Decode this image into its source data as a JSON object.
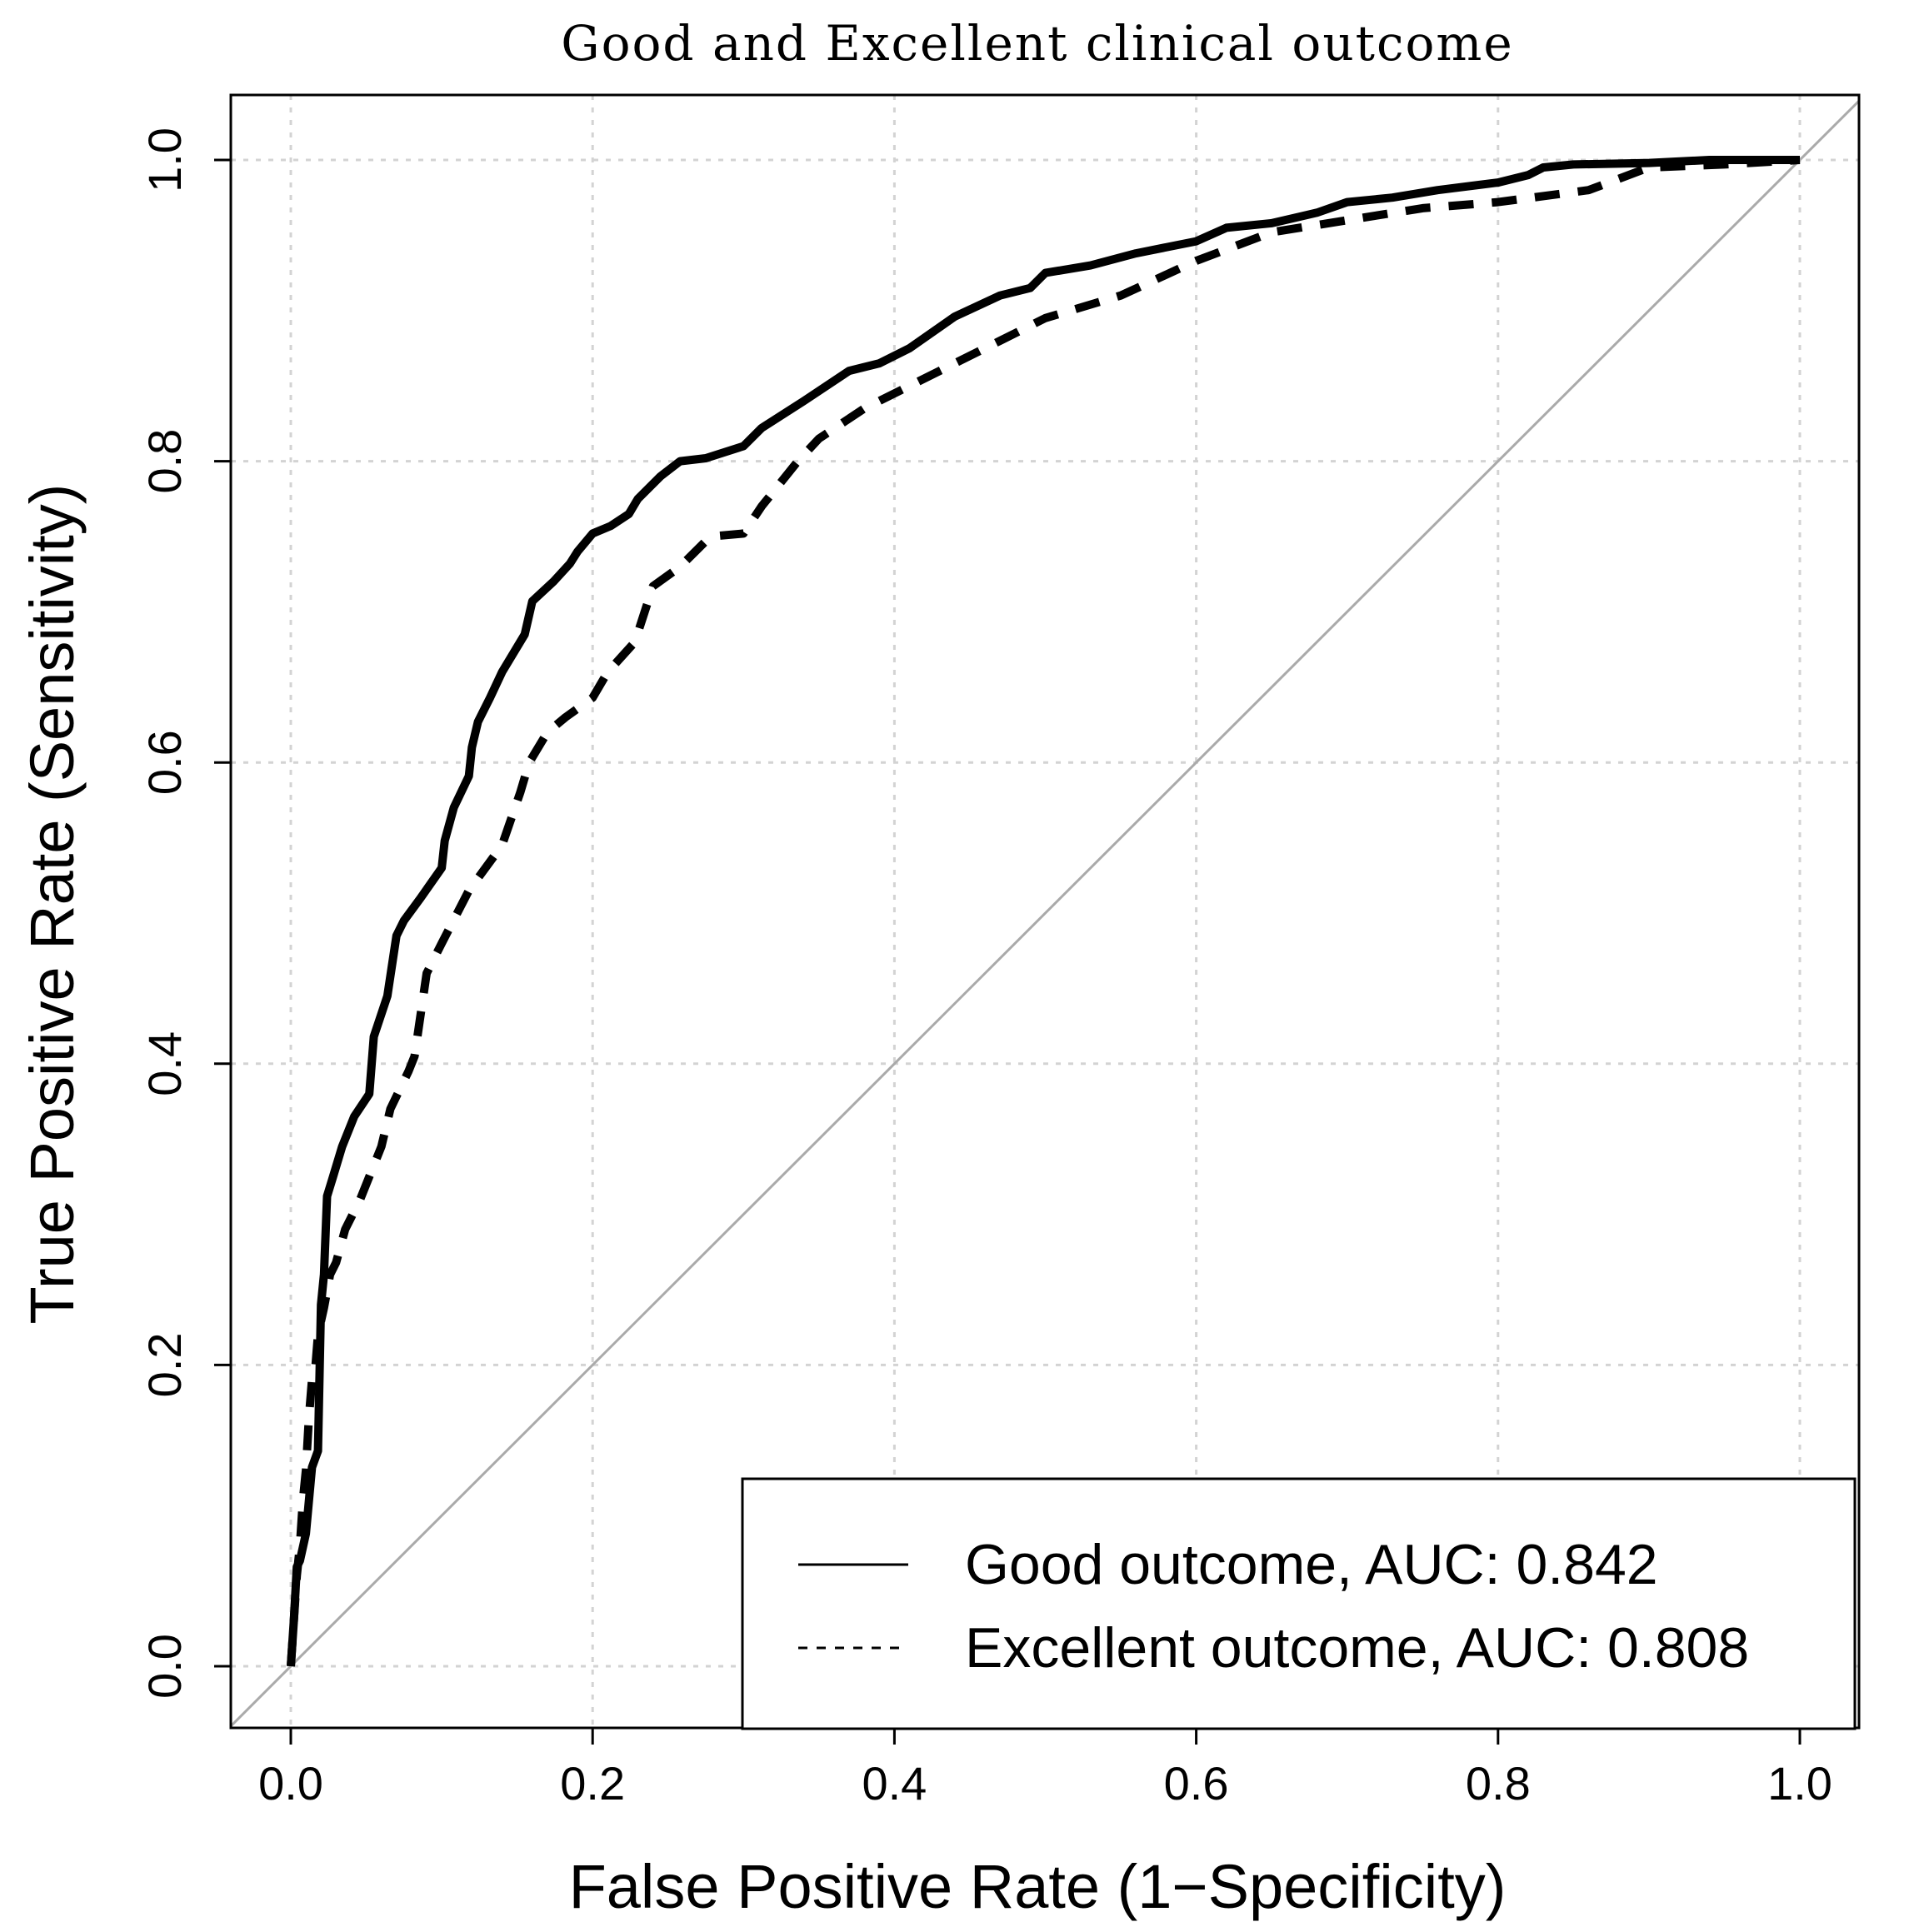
{
  "chart_data": {
    "type": "line",
    "title": "Good and Excellent clinical outcome",
    "xlabel": "False Positive Rate (1−Specificity)",
    "ylabel": "True Positive Rate (Sensitivity)",
    "xlim": [
      0,
      1
    ],
    "ylim": [
      0,
      1
    ],
    "x_ticks": [
      "0.0",
      "0.2",
      "0.4",
      "0.6",
      "0.8",
      "1.0"
    ],
    "y_ticks": [
      "0.0",
      "0.2",
      "0.4",
      "0.6",
      "0.8",
      "1.0"
    ],
    "grid": true,
    "legend_position": "bottom-right",
    "reference_line": {
      "name": "chance",
      "x": [
        0,
        1
      ],
      "y": [
        0,
        1
      ],
      "color": "#aaaaaa"
    },
    "series": [
      {
        "name": "Good outcome, AUC: 0.842",
        "line_style": "solid",
        "x": [
          0.0,
          0.002,
          0.004,
          0.006,
          0.01,
          0.014,
          0.018,
          0.02,
          0.022,
          0.024,
          0.028,
          0.034,
          0.042,
          0.052,
          0.055,
          0.064,
          0.07,
          0.075,
          0.086,
          0.1,
          0.102,
          0.108,
          0.118,
          0.12,
          0.124,
          0.132,
          0.14,
          0.155,
          0.16,
          0.174,
          0.185,
          0.19,
          0.2,
          0.212,
          0.224,
          0.23,
          0.245,
          0.258,
          0.275,
          0.3,
          0.312,
          0.34,
          0.37,
          0.39,
          0.41,
          0.44,
          0.47,
          0.49,
          0.5,
          0.53,
          0.56,
          0.6,
          0.62,
          0.65,
          0.68,
          0.7,
          0.73,
          0.76,
          0.8,
          0.82,
          0.83,
          0.85,
          0.9,
          0.94,
          1.0
        ],
        "y": [
          0.0,
          0.03,
          0.066,
          0.07,
          0.088,
          0.132,
          0.143,
          0.24,
          0.26,
          0.312,
          0.325,
          0.345,
          0.365,
          0.38,
          0.418,
          0.445,
          0.485,
          0.495,
          0.51,
          0.53,
          0.548,
          0.57,
          0.591,
          0.61,
          0.627,
          0.643,
          0.66,
          0.685,
          0.707,
          0.72,
          0.732,
          0.74,
          0.752,
          0.757,
          0.765,
          0.775,
          0.79,
          0.8,
          0.802,
          0.81,
          0.822,
          0.84,
          0.86,
          0.865,
          0.875,
          0.896,
          0.91,
          0.915,
          0.925,
          0.93,
          0.938,
          0.946,
          0.955,
          0.958,
          0.965,
          0.972,
          0.975,
          0.98,
          0.985,
          0.99,
          0.995,
          0.997,
          0.998,
          1.0,
          1.0
        ]
      },
      {
        "name": "Excellent outcome, AUC: 0.808",
        "line_style": "dashed",
        "x": [
          0.0,
          0.002,
          0.004,
          0.006,
          0.008,
          0.01,
          0.012,
          0.014,
          0.016,
          0.018,
          0.022,
          0.026,
          0.03,
          0.036,
          0.046,
          0.06,
          0.066,
          0.078,
          0.082,
          0.09,
          0.1,
          0.118,
          0.14,
          0.152,
          0.158,
          0.17,
          0.182,
          0.2,
          0.21,
          0.228,
          0.24,
          0.258,
          0.278,
          0.3,
          0.312,
          0.336,
          0.35,
          0.38,
          0.41,
          0.44,
          0.47,
          0.5,
          0.55,
          0.6,
          0.65,
          0.7,
          0.75,
          0.8,
          0.86,
          0.9,
          0.95,
          1.0
        ],
        "y": [
          0.0,
          0.03,
          0.06,
          0.08,
          0.11,
          0.13,
          0.165,
          0.19,
          0.195,
          0.22,
          0.238,
          0.26,
          0.268,
          0.29,
          0.31,
          0.345,
          0.37,
          0.395,
          0.405,
          0.46,
          0.48,
          0.515,
          0.545,
          0.58,
          0.6,
          0.62,
          0.63,
          0.643,
          0.66,
          0.68,
          0.717,
          0.73,
          0.75,
          0.752,
          0.77,
          0.8,
          0.815,
          0.835,
          0.85,
          0.865,
          0.88,
          0.895,
          0.91,
          0.933,
          0.952,
          0.96,
          0.968,
          0.972,
          0.98,
          0.995,
          0.997,
          1.0
        ]
      }
    ]
  }
}
